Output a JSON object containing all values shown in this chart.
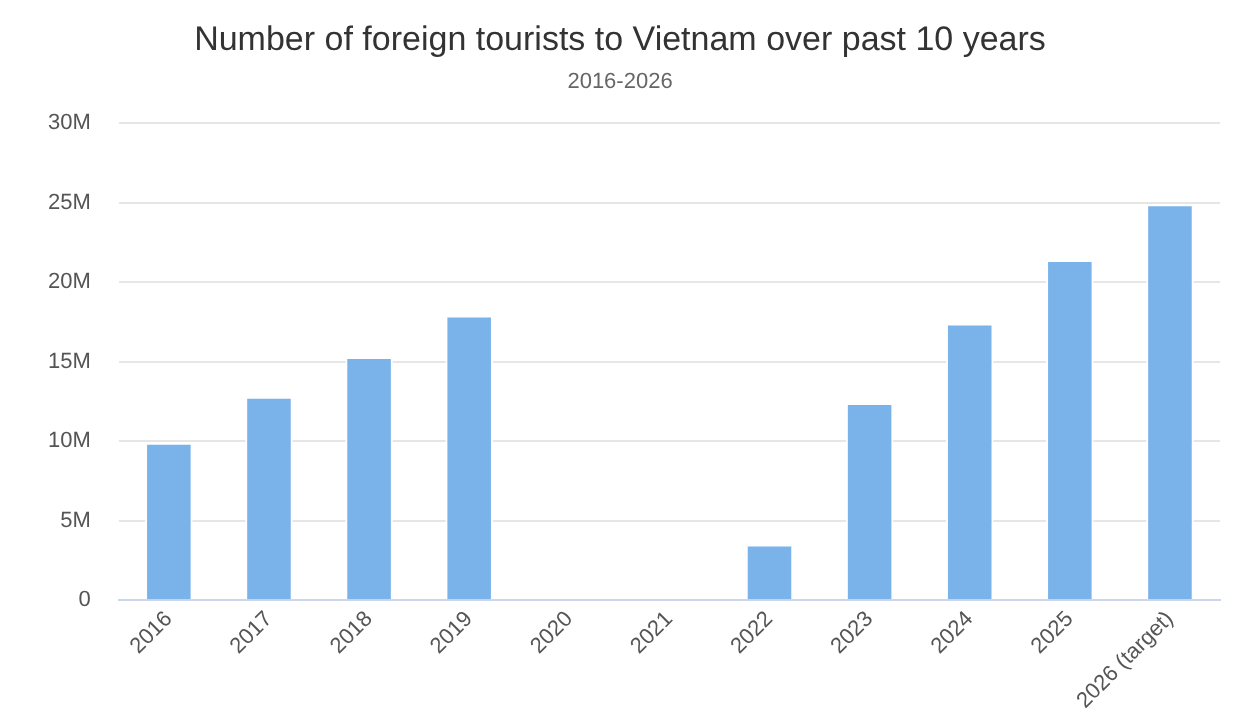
{
  "chart_data": {
    "type": "bar",
    "title": "Number of foreign tourists to Vietnam over past 10 years",
    "subtitle": "2016-2026",
    "categories": [
      "2016",
      "2017",
      "2018",
      "2019",
      "2020",
      "2021",
      "2022",
      "2023",
      "2024",
      "2025",
      "2026 (target)"
    ],
    "values": [
      9.9,
      12.8,
      15.3,
      17.9,
      null,
      null,
      3.5,
      12.4,
      17.4,
      21.4,
      24.9
    ],
    "color": "#7ab3ea",
    "ylim": [
      0,
      30
    ],
    "yticks": [
      0,
      {
        "value": 5,
        "label": "5M"
      },
      {
        "value": 10,
        "label": "10M"
      },
      {
        "value": 15,
        "label": "15M"
      },
      {
        "value": 20,
        "label": "20M"
      },
      {
        "value": 25,
        "label": "25M"
      },
      {
        "value": 30,
        "label": "30M"
      }
    ],
    "grid": "y"
  }
}
